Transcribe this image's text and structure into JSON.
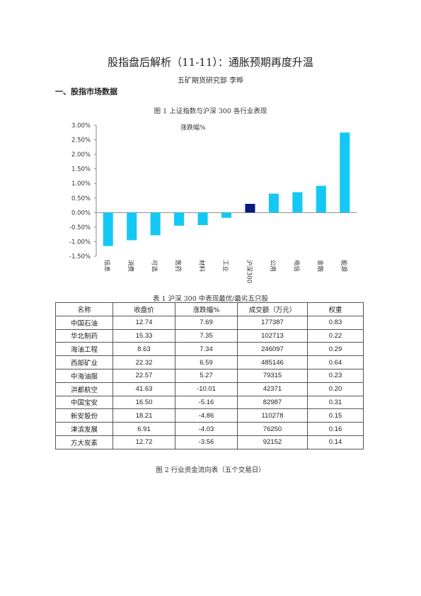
{
  "document": {
    "title": "股指盘后解析（11-11）：通胀预期再度升温",
    "author": "五矿期货研究部 李晔",
    "section_heading": "一、股指市场数据",
    "figure1_caption": "图 1 上证指数与沪深 300 各行业表现",
    "table1_caption": "表 1 沪深 300 中表现最优/最劣五只股",
    "figure2_caption": "图 2 行业资金流向表（五个交易日）"
  },
  "colors": {
    "bar_default": "#14c8f5",
    "bar_highlight": "#0a1a80",
    "axis": "#888888"
  },
  "chart_data": {
    "type": "bar",
    "legend": "涨跌幅%",
    "categories": [
      "信息",
      "消费",
      "可选",
      "医药",
      "材料",
      "工业",
      "沪深300",
      "公用",
      "电信",
      "金融",
      "能源"
    ],
    "values": [
      -1.15,
      -0.95,
      -0.78,
      -0.45,
      -0.43,
      -0.18,
      0.3,
      0.65,
      0.7,
      0.92,
      2.75
    ],
    "highlight_category": "沪深300",
    "ylim": [
      -1.5,
      3.0
    ],
    "yticks": [
      3.0,
      2.5,
      2.0,
      1.5,
      1.0,
      0.5,
      0.0,
      -0.5,
      -1.0,
      -1.5
    ],
    "ytick_labels": [
      "3.00%",
      "2.50%",
      "2.00%",
      "1.50%",
      "1.00%",
      "0.50%",
      "0.00%",
      "-0.50%",
      "-1.00%",
      "-1.50%"
    ],
    "grid": false
  },
  "table1": {
    "headers": [
      "名称",
      "收盘价",
      "涨跌幅%",
      "成交额（万元）",
      "权重"
    ],
    "rows": [
      [
        "中国石油",
        "12.74",
        "7.69",
        "177387",
        "0.83"
      ],
      [
        "华北制药",
        "15.33",
        "7.35",
        "102713",
        "0.22"
      ],
      [
        "海油工程",
        "8.63",
        "7.34",
        "246097",
        "0.29"
      ],
      [
        "西部矿业",
        "22.32",
        "6.59",
        "485146",
        "0.64"
      ],
      [
        "中海油服",
        "22.57",
        "5.27",
        "79315",
        "0.23"
      ],
      [
        "洪都航空",
        "41.63",
        "-10.01",
        "42371",
        "0.20"
      ],
      [
        "中国宝安",
        "16.50",
        "-5.16",
        "82987",
        "0.31"
      ],
      [
        "新安股份",
        "18.21",
        "-4.86",
        "110278",
        "0.15"
      ],
      [
        "津滨发展",
        "6.91",
        "-4.03",
        "76250",
        "0.16"
      ],
      [
        "方大炭素",
        "12.72",
        "-3.56",
        "92152",
        "0.14"
      ]
    ]
  }
}
